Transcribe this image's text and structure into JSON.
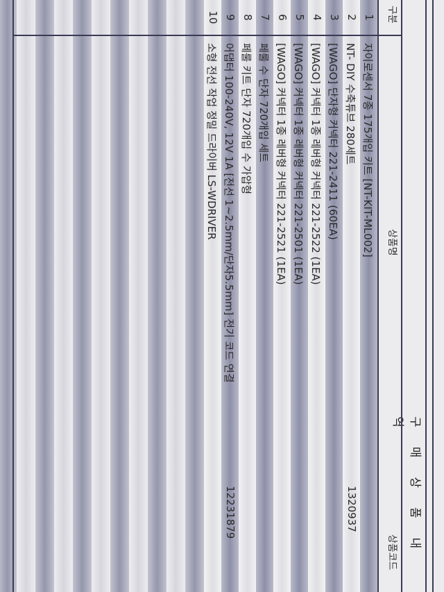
{
  "title": "구매상품내역",
  "columns": {
    "num": "구분",
    "name": "상품명",
    "code": "상품코드"
  },
  "rows": [
    {
      "num": "1",
      "name": "자이로센서 7종 175개입 키트 [NT-KIT-ML002]",
      "code": ""
    },
    {
      "num": "2",
      "name": "NT- DIY 수축튜브 280세트",
      "code": "1320937"
    },
    {
      "num": "3",
      "name": "[WAGO] 단자형 커넥터 221-2411 (60EA)",
      "code": ""
    },
    {
      "num": "4",
      "name": "[WAGO] 커넥터 1종 레버형 커넥터 221-2522 (1EA)",
      "code": ""
    },
    {
      "num": "5",
      "name": "[WAGO] 커넥터 1종 레버형 커넥터 221-2501 (1EA)",
      "code": ""
    },
    {
      "num": "6",
      "name": "[WAGO] 커넥터 1종 레버형 커넥터 221-2521 (1EA)",
      "code": ""
    },
    {
      "num": "7",
      "name": "페룰 수 단자 720개입 세트",
      "code": ""
    },
    {
      "num": "8",
      "name": "페룰 키트 단자 720개입 수 가압형",
      "code": ""
    },
    {
      "num": "9",
      "name": "어댑터 100-240V, 12V 1A [전선 1~2.5mm/단자5.5mm] 전기 코드 연결",
      "code": "12231879"
    },
    {
      "num": "10",
      "name": "소형 전선 작업 정밀 드라이버 LS-WDRIVER",
      "code": ""
    }
  ],
  "colors": {
    "stripe_dark": "#8e90a8",
    "stripe_light": "#e8e8ea",
    "ink": "#2a2a2a",
    "rule": "#3a3a55"
  }
}
